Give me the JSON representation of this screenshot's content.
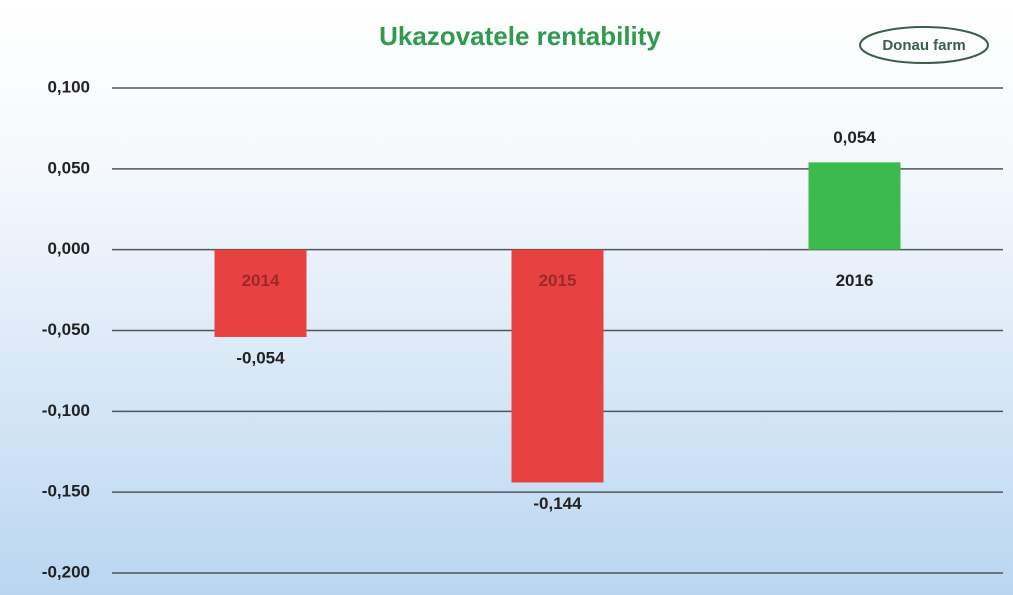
{
  "chart_data": {
    "type": "bar",
    "title": "Ukazovatele rentability",
    "logo": "Donau farm",
    "categories": [
      "2014",
      "2015",
      "2016"
    ],
    "values": [
      -0.054,
      -0.144,
      0.054
    ],
    "value_labels": [
      "-0,054",
      "-0,144",
      "0,054"
    ],
    "colors": [
      "#e84142",
      "#e84142",
      "#3dba4e"
    ],
    "ylim": [
      -0.2,
      0.1
    ],
    "yticks": [
      {
        "value": 0.1,
        "label": "0,100"
      },
      {
        "value": 0.05,
        "label": "0,050"
      },
      {
        "value": 0,
        "label": "0,000"
      },
      {
        "value": -0.05,
        "label": "-0,050"
      },
      {
        "value": -0.1,
        "label": "-0,100"
      },
      {
        "value": -0.15,
        "label": "-0,150"
      },
      {
        "value": -0.2,
        "label": "-0,200"
      }
    ],
    "grid": true
  }
}
